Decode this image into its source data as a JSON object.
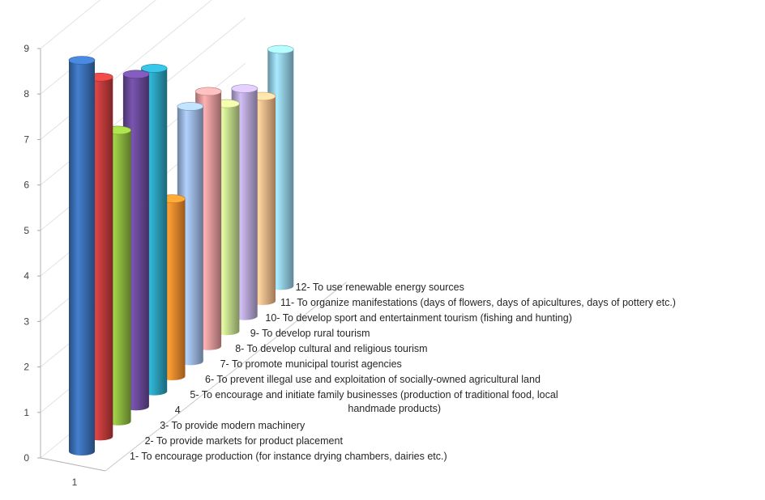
{
  "chart_data": {
    "type": "bar",
    "categories": [
      "1"
    ],
    "y_ticks": [
      "0",
      "1",
      "2",
      "3",
      "4",
      "5",
      "6",
      "7",
      "8",
      "9"
    ],
    "ylim": [
      0,
      9
    ],
    "grid": true,
    "series": [
      {
        "name": "1- To encourage production (for instance drying chambers, dairies etc.)",
        "values": [
          8.6
        ],
        "color": "#3a6fb5"
      },
      {
        "name": "2- To provide markets for product placement",
        "values": [
          7.9
        ],
        "color": "#c23b3b"
      },
      {
        "name": "3- To provide modern machinery",
        "values": [
          6.4
        ],
        "color": "#8cb83f"
      },
      {
        "name": "4",
        "values": [
          7.3
        ],
        "color": "#6a4a9a"
      },
      {
        "name": "5- To encourage and initiate family businesses (production of traditional food, local",
        "name_line2": "handmade products)",
        "values": [
          7.1
        ],
        "color": "#2b9fbb"
      },
      {
        "name": "6- To prevent illegal use and exploitation of socially-owned agricultural land",
        "values": [
          3.9
        ],
        "color": "#f08a2c"
      },
      {
        "name": "7- To promote municipal tourist agencies",
        "values": [
          5.6
        ],
        "color": "#9bb7e0"
      },
      {
        "name": "8- To develop cultural and religious tourism",
        "values": [
          5.6
        ],
        "color": "#e39a9a"
      },
      {
        "name": "9- To develop rural tourism",
        "values": [
          5.0
        ],
        "color": "#c4dc8c"
      },
      {
        "name": "10- To develop sport and entertainment tourism (fishing and hunting)",
        "values": [
          5.0
        ],
        "color": "#b7a6d6"
      },
      {
        "name": "11- To organize manifestations (days of flowers, days of apicultures, days of pottery etc.)",
        "values": [
          4.5
        ],
        "color": "#f5b98a"
      },
      {
        "name": "12- To use renewable energy sources",
        "values": [
          5.2
        ],
        "color": "#92cde6"
      }
    ]
  }
}
